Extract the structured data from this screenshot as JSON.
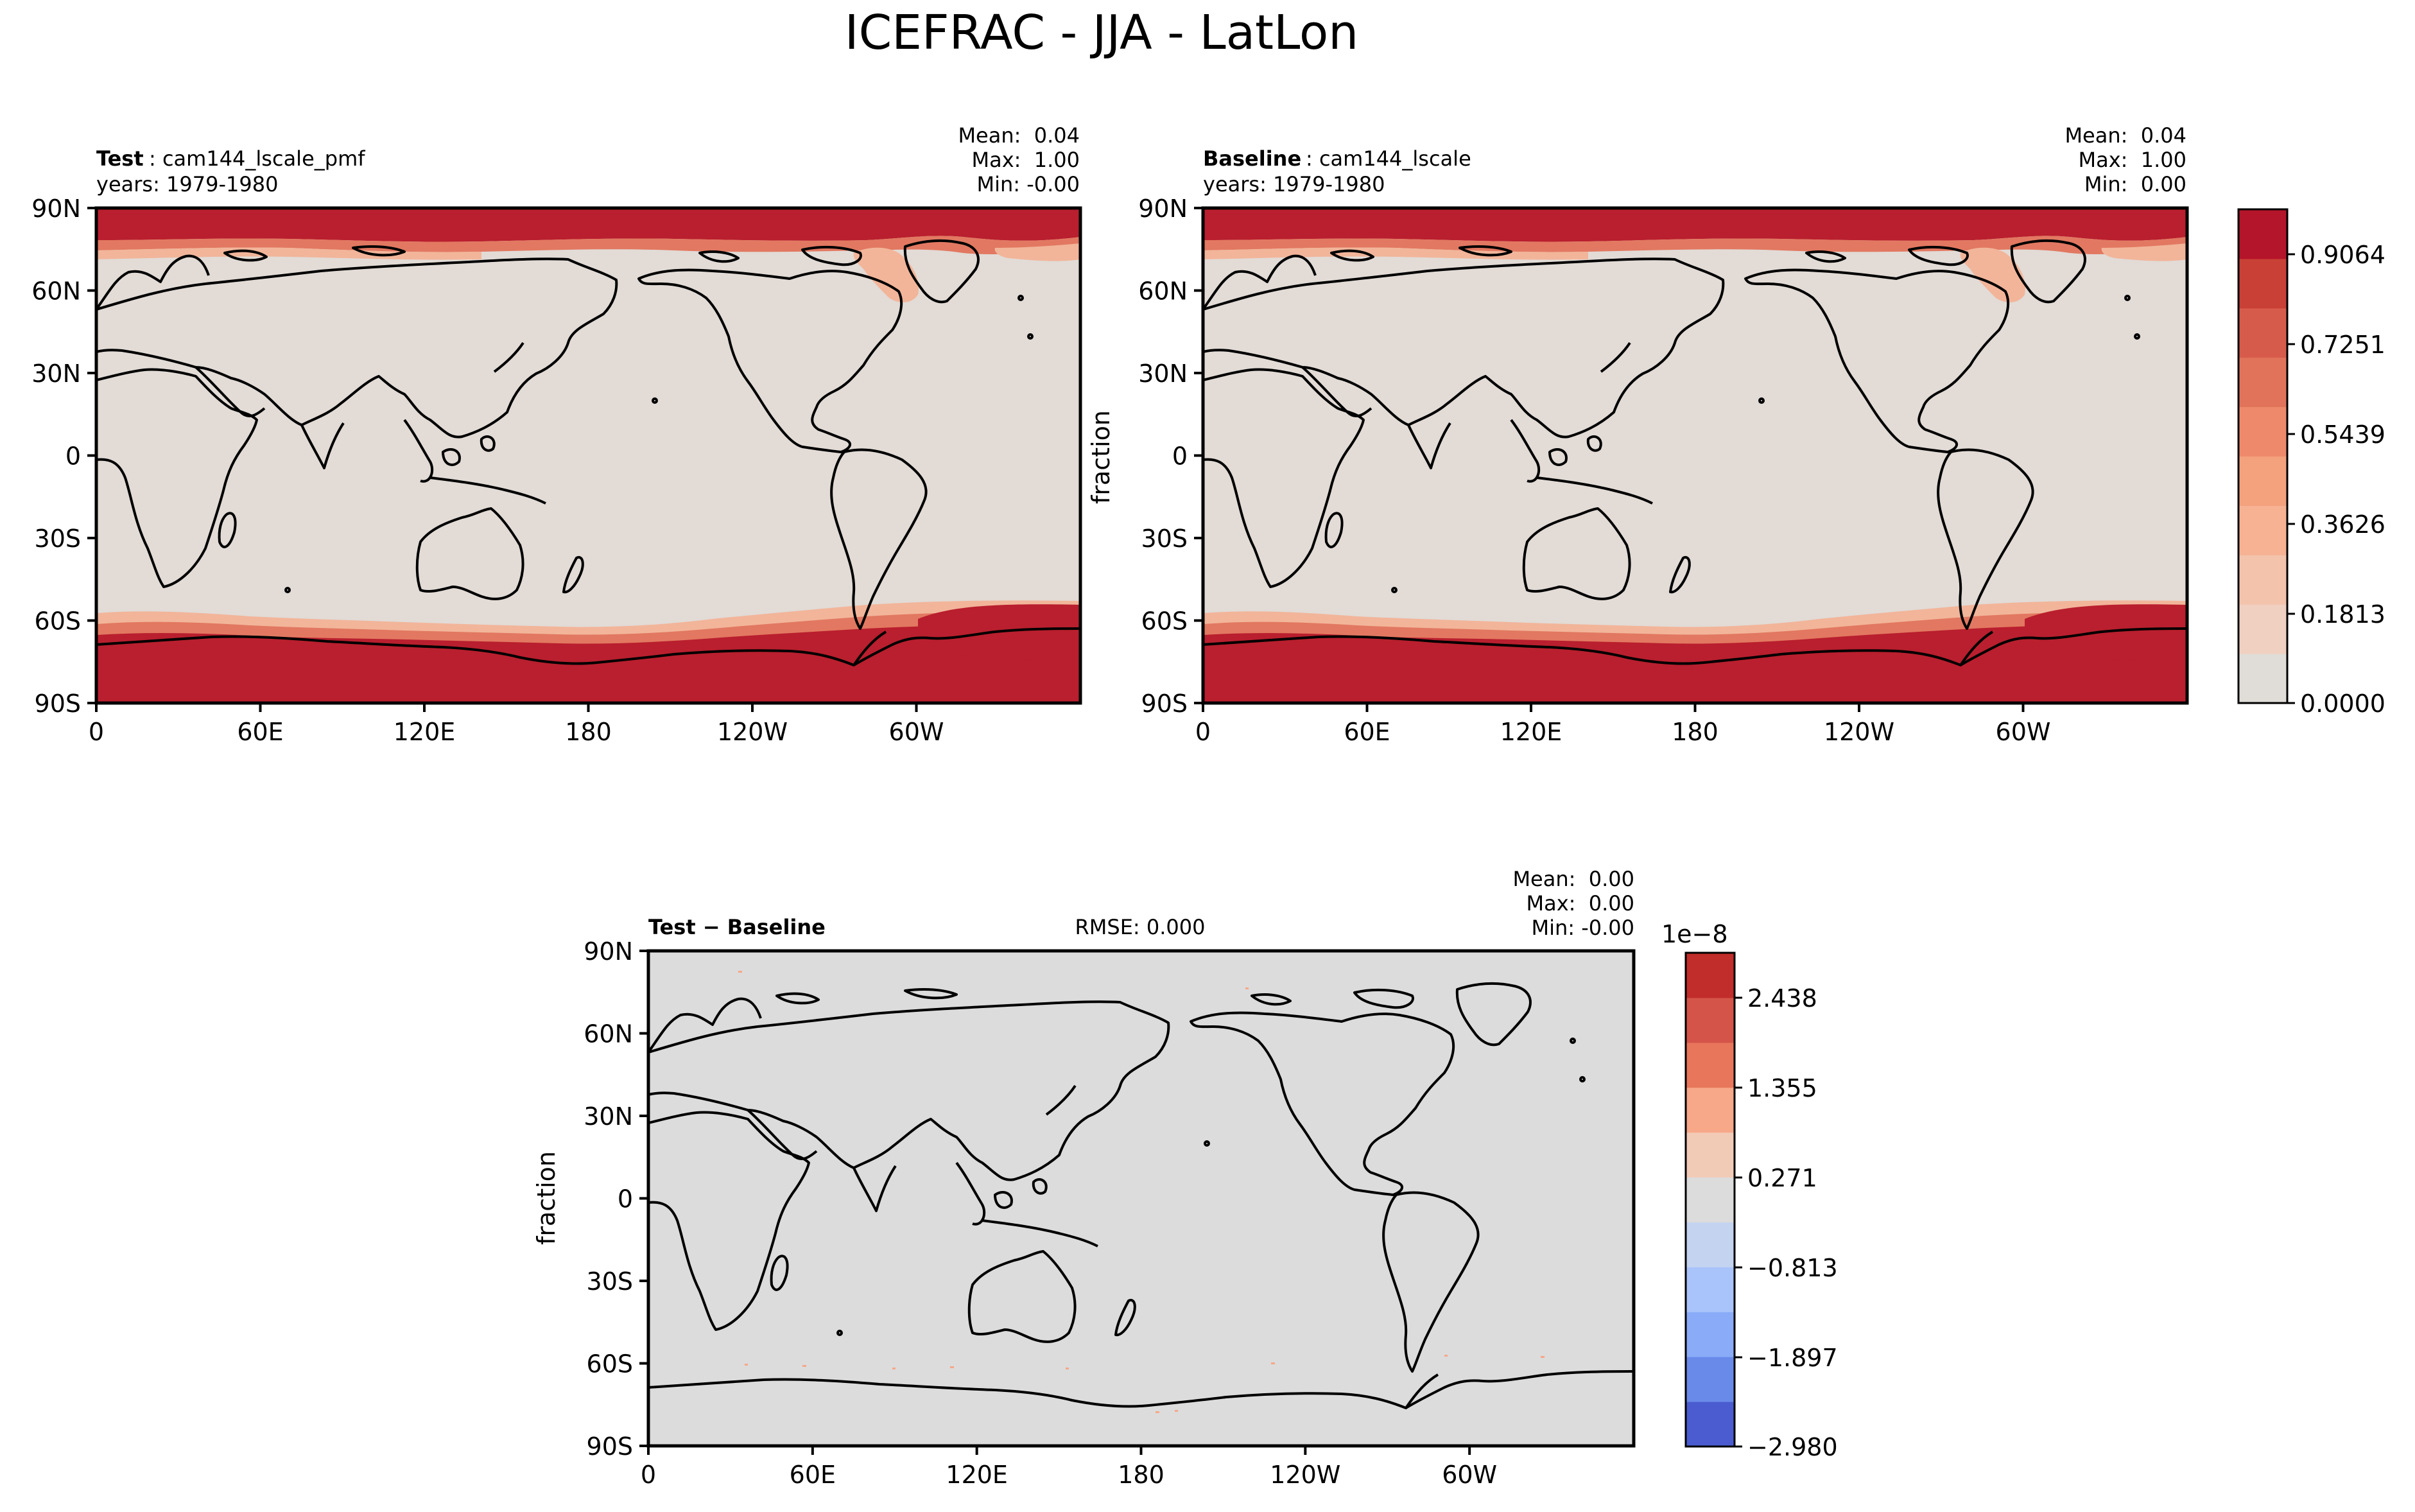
{
  "figure": {
    "title": "ICEFRAC - JJA - LatLon"
  },
  "lat_ticks": [
    "90N",
    "60N",
    "30N",
    "0",
    "30S",
    "60S",
    "90S"
  ],
  "lon_ticks": [
    "0",
    "60E",
    "120E",
    "180",
    "120W",
    "60W"
  ],
  "panels": {
    "test": {
      "label_bold": "Test",
      "label_rest": ": cam144_lscale_pmf",
      "years": "years: 1979-1980",
      "stats": [
        "Mean:  0.04",
        "Max:  1.00",
        "Min: -0.00"
      ],
      "ylabel": ""
    },
    "baseline": {
      "label_bold": "Baseline",
      "label_rest": ": cam144_lscale",
      "years": "years: 1979-1980",
      "stats": [
        "Mean:  0.04",
        "Max:  1.00",
        "Min:  0.00"
      ],
      "ylabel": "fraction"
    },
    "diff": {
      "label_bold": "Test − Baseline",
      "rmse": "RMSE: 0.000",
      "stats": [
        "Mean:  0.00",
        "Max:  0.00",
        "Min: -0.00"
      ],
      "ylabel": "fraction"
    }
  },
  "colorbar_main": {
    "ticks": [
      "0.9064",
      "0.7251",
      "0.5439",
      "0.3626",
      "0.1813",
      "0.0000"
    ],
    "colors": [
      "#e0dcd8",
      "#efd0c1",
      "#f3c3ac",
      "#f6b293",
      "#f4a17d",
      "#ee8a6b",
      "#e2735b",
      "#d75b4b",
      "#c94037",
      "#b4152a"
    ]
  },
  "colorbar_diff": {
    "exponent": "1e−8",
    "ticks": [
      "2.438",
      "1.355",
      "0.271",
      "−0.813",
      "−1.897",
      "−2.980"
    ],
    "colors": [
      "#4a5ccf",
      "#6a8ae9",
      "#8aabf8",
      "#a9c4fb",
      "#c4d3ef",
      "#dcdcdc",
      "#f2cbb7",
      "#f6a889",
      "#e8765b",
      "#d45449",
      "#c02d2a"
    ]
  },
  "map_colors": {
    "background": "#e2dbd6",
    "diff_background": "#dcdcdc",
    "ice_high": "#b91f2e",
    "ice_mid": "#e27861",
    "ice_low": "#f2b59a",
    "coast": "#000000"
  }
}
